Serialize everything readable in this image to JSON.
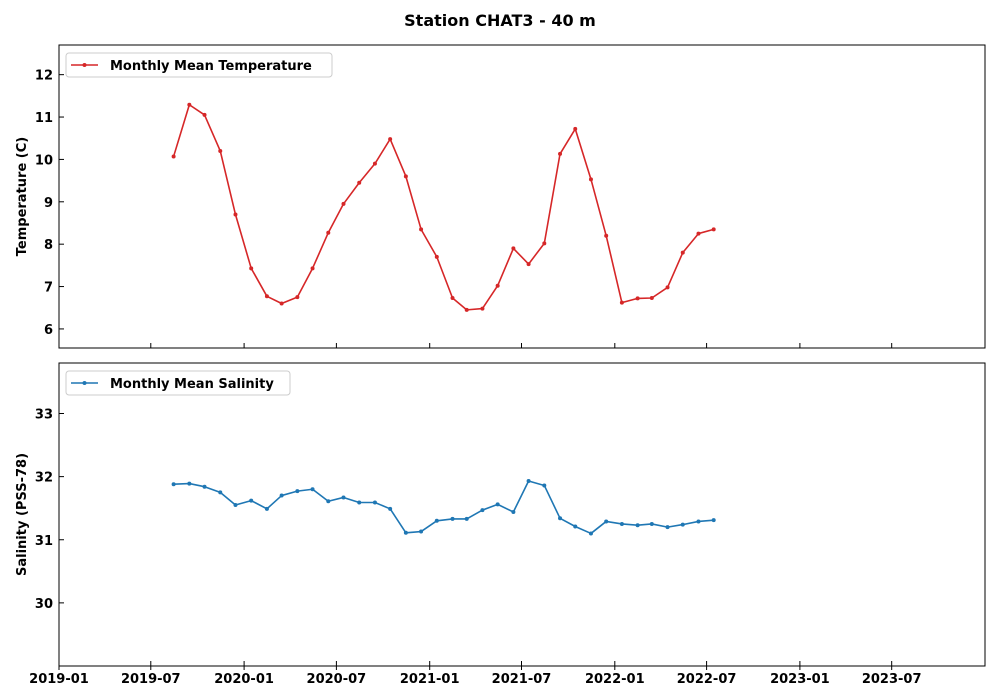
{
  "chart_data": {
    "title": "Station CHAT3 - 40 m",
    "shared_x": {
      "type": "date",
      "xlim": [
        "2019-01-01",
        "2024-01-01"
      ],
      "ticks": [
        "2019-01",
        "2019-07",
        "2020-01",
        "2020-07",
        "2021-01",
        "2021-07",
        "2022-01",
        "2022-07",
        "2023-01",
        "2023-07"
      ]
    },
    "panels": [
      {
        "type": "line",
        "ylabel": "Temperature (C)",
        "ylim": [
          5.55,
          12.7
        ],
        "yticks": [
          6,
          7,
          8,
          9,
          10,
          11,
          12
        ],
        "legend_position": "top-left",
        "series": [
          {
            "name": "Monthly Mean Temperature",
            "color": "#d62728",
            "x": [
              "2019-08-15",
              "2019-09-15",
              "2019-10-15",
              "2019-11-15",
              "2019-12-15",
              "2020-01-15",
              "2020-02-15",
              "2020-03-15",
              "2020-04-15",
              "2020-05-15",
              "2020-06-15",
              "2020-07-15",
              "2020-08-15",
              "2020-09-15",
              "2020-10-15",
              "2020-11-15",
              "2020-12-15",
              "2021-01-15",
              "2021-02-15",
              "2021-03-15",
              "2021-04-15",
              "2021-05-15",
              "2021-06-15",
              "2021-07-15",
              "2021-08-15",
              "2021-09-15",
              "2021-10-15",
              "2021-11-15",
              "2021-12-15",
              "2022-01-15",
              "2022-02-15",
              "2022-03-15",
              "2022-04-15",
              "2022-05-15",
              "2022-06-15",
              "2022-07-15"
            ],
            "y": [
              10.07,
              11.29,
              11.05,
              10.2,
              8.7,
              7.43,
              6.77,
              6.6,
              6.75,
              7.43,
              8.27,
              8.95,
              9.45,
              9.9,
              10.48,
              9.6,
              8.35,
              7.7,
              6.73,
              6.45,
              6.48,
              7.02,
              7.9,
              7.53,
              8.02,
              10.13,
              10.72,
              9.53,
              8.2,
              6.62,
              6.72,
              6.73,
              6.98,
              7.8,
              8.25,
              8.35
            ]
          }
        ]
      },
      {
        "type": "line",
        "ylabel": "Salinity (PSS-78)",
        "ylim": [
          29.0,
          33.8
        ],
        "yticks": [
          30,
          31,
          32,
          33
        ],
        "legend_position": "top-left",
        "series": [
          {
            "name": "Monthly Mean Salinity",
            "color": "#1f77b4",
            "x": [
              "2019-08-15",
              "2019-09-15",
              "2019-10-15",
              "2019-11-15",
              "2019-12-15",
              "2020-01-15",
              "2020-02-15",
              "2020-03-15",
              "2020-04-15",
              "2020-05-15",
              "2020-06-15",
              "2020-07-15",
              "2020-08-15",
              "2020-09-15",
              "2020-10-15",
              "2020-11-15",
              "2020-12-15",
              "2021-01-15",
              "2021-02-15",
              "2021-03-15",
              "2021-04-15",
              "2021-05-15",
              "2021-06-15",
              "2021-07-15",
              "2021-08-15",
              "2021-09-15",
              "2021-10-15",
              "2021-11-15",
              "2021-12-15",
              "2022-01-15",
              "2022-02-15",
              "2022-03-15",
              "2022-04-15",
              "2022-05-15",
              "2022-06-15",
              "2022-07-15"
            ],
            "y": [
              31.88,
              31.89,
              31.84,
              31.75,
              31.55,
              31.62,
              31.49,
              31.7,
              31.77,
              31.8,
              31.61,
              31.67,
              31.59,
              31.59,
              31.49,
              31.11,
              31.13,
              31.3,
              31.33,
              31.33,
              31.47,
              31.56,
              31.44,
              31.93,
              31.86,
              31.34,
              31.21,
              31.1,
              31.29,
              31.25,
              31.23,
              31.25,
              31.2,
              31.24,
              31.29,
              31.31
            ]
          }
        ]
      }
    ]
  }
}
